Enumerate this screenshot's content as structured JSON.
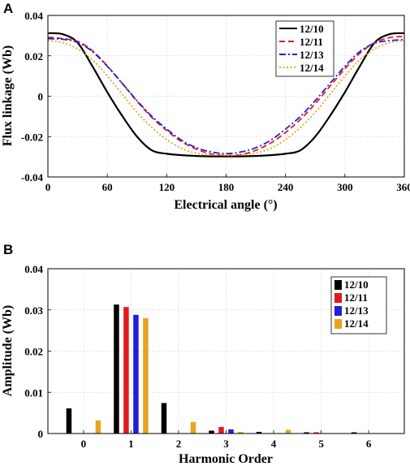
{
  "colors": {
    "s1210": "#000000",
    "s1211": "#e31a1c",
    "s1213": "#1f1fd6",
    "s1214": "#e6a520",
    "grid": "#d9d9d9"
  },
  "chart_data": [
    {
      "panel_label": "A",
      "type": "line",
      "xlabel": "Electrical angle (°)",
      "ylabel": "Flux linkage (Wb)",
      "xlim": [
        0,
        360
      ],
      "ylim": [
        -0.04,
        0.04
      ],
      "xticks": [
        "0",
        "60",
        "120",
        "180",
        "240",
        "300",
        "360"
      ],
      "yticks": [
        "-0.04",
        "-0.02",
        "0",
        "0.02",
        "0.04"
      ],
      "grid": true,
      "legend_position": "top-right",
      "x": [
        0,
        15,
        30,
        45,
        60,
        75,
        90,
        105,
        120,
        135,
        150,
        165,
        180,
        195,
        210,
        225,
        240,
        255,
        270,
        285,
        300,
        315,
        330,
        345,
        360
      ],
      "series": [
        {
          "name": "12/10",
          "style": "solid",
          "values": [
            0.0312,
            0.0307,
            0.0265,
            0.0148,
            0.002,
            -0.0097,
            -0.02,
            -0.0268,
            -0.0285,
            -0.0292,
            -0.0296,
            -0.0298,
            -0.0298,
            -0.0298,
            -0.0296,
            -0.0292,
            -0.0285,
            -0.0268,
            -0.02,
            -0.0097,
            0.002,
            0.0148,
            0.0265,
            0.0307,
            0.0312
          ]
        },
        {
          "name": "12/11",
          "style": "dashed",
          "values": [
            0.0292,
            0.0285,
            0.0272,
            0.0225,
            0.015,
            0.0064,
            -0.0025,
            -0.0105,
            -0.017,
            -0.0225,
            -0.0262,
            -0.0286,
            -0.0293,
            -0.0289,
            -0.0268,
            -0.0232,
            -0.018,
            -0.0115,
            -0.0037,
            0.005,
            0.0136,
            0.0212,
            0.0265,
            0.029,
            0.0296
          ]
        },
        {
          "name": "12/13",
          "style": "dashdot",
          "values": [
            0.0285,
            0.0282,
            0.0266,
            0.0221,
            0.0148,
            0.0064,
            -0.0022,
            -0.01,
            -0.0163,
            -0.0218,
            -0.0255,
            -0.0276,
            -0.0284,
            -0.0276,
            -0.0255,
            -0.0218,
            -0.0163,
            -0.01,
            -0.0022,
            0.0064,
            0.0148,
            0.0221,
            0.0262,
            0.0275,
            0.028
          ]
        },
        {
          "name": "12/14",
          "style": "dotted",
          "values": [
            0.0275,
            0.0265,
            0.0235,
            0.018,
            0.01,
            0.001,
            -0.008,
            -0.0155,
            -0.0215,
            -0.0258,
            -0.0282,
            -0.029,
            -0.0292,
            -0.029,
            -0.0282,
            -0.0258,
            -0.0215,
            -0.0155,
            -0.008,
            0.001,
            0.01,
            0.018,
            0.0235,
            0.0265,
            0.0275
          ]
        }
      ]
    },
    {
      "panel_label": "B",
      "type": "bar",
      "xlabel": "Harmonic Order",
      "ylabel": "Amplitude (Wb)",
      "ylim": [
        0,
        0.04
      ],
      "yticks": [
        "0",
        "0.01",
        "0.02",
        "0.03",
        "0.04"
      ],
      "grid": true,
      "legend_position": "top-right",
      "categories": [
        "0",
        "1",
        "2",
        "3",
        "4",
        "5",
        "6"
      ],
      "series": [
        {
          "name": "12/10",
          "values": [
            0.0061,
            0.0313,
            0.0074,
            0.0007,
            0.0004,
            0.0003,
            0.0003
          ]
        },
        {
          "name": "12/11",
          "values": [
            0.0001,
            0.0307,
            0.0001,
            0.0016,
            0.0001,
            0.0003,
            0.0001
          ]
        },
        {
          "name": "12/13",
          "values": [
            0.0001,
            0.0288,
            0.0001,
            0.001,
            0.0001,
            0.0001,
            0.0001
          ]
        },
        {
          "name": "12/14",
          "values": [
            0.0032,
            0.028,
            0.0028,
            0.0004,
            0.0009,
            0.0001,
            0.0001
          ]
        }
      ]
    }
  ]
}
